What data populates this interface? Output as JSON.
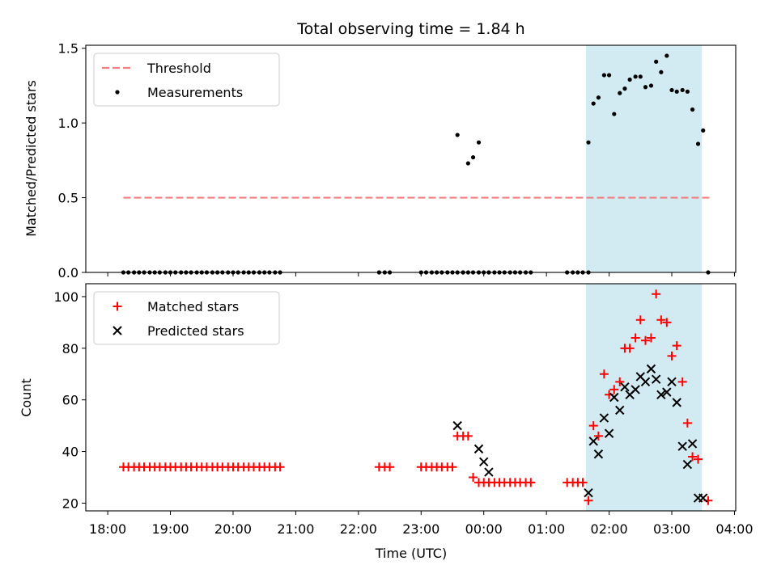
{
  "title": "Total observing time = 1.84 h",
  "colors": {
    "threshold": "#f08080",
    "measurement": "#000000",
    "matched": "#ff0000",
    "predicted": "#000000",
    "shade": "#add8e6"
  },
  "chart_data": [
    {
      "type": "scatter",
      "ylabel": "Matched/Predicted stars",
      "ylim": [
        0,
        1.52
      ],
      "yticks": [
        0,
        0.5,
        1.0,
        1.5
      ],
      "ytick_labels": [
        "0.0",
        "0.5",
        "1.0",
        "1.5"
      ],
      "x_unit": "hours since 18:00 UTC",
      "xlim": [
        -0.35,
        10.02
      ],
      "shaded_span": [
        7.63,
        9.48
      ],
      "legend": {
        "position": "top-left",
        "entries": [
          "Threshold",
          "Measurements"
        ]
      },
      "threshold": {
        "name": "Threshold",
        "x": [
          0.25,
          9.6
        ],
        "y": 0.5
      },
      "series": [
        {
          "name": "Measurements",
          "x": [
            0.25,
            0.33,
            0.42,
            0.5,
            0.58,
            0.67,
            0.75,
            0.83,
            0.92,
            1.0,
            1.08,
            1.17,
            1.25,
            1.33,
            1.42,
            1.5,
            1.58,
            1.67,
            1.75,
            1.83,
            1.92,
            2.0,
            2.08,
            2.17,
            2.25,
            2.33,
            2.42,
            2.5,
            2.58,
            2.67,
            2.75,
            4.33,
            4.42,
            4.5,
            5.0,
            5.08,
            5.17,
            5.25,
            5.33,
            5.42,
            5.5,
            5.58,
            5.67,
            5.75,
            5.83,
            5.92,
            6.0,
            6.08,
            6.17,
            6.25,
            6.33,
            6.42,
            6.5,
            6.58,
            6.67,
            6.75,
            7.33,
            7.42,
            7.5,
            7.58,
            7.67,
            5.58,
            5.67,
            5.75,
            5.83,
            5.92,
            6.08,
            7.67,
            7.75,
            7.83,
            7.92,
            8.0,
            8.08,
            8.17,
            8.25,
            8.33,
            8.42,
            8.5,
            8.58,
            8.67,
            8.75,
            8.83,
            8.92,
            9.0,
            9.08,
            9.17,
            9.25,
            9.33,
            9.42,
            9.5,
            9.58
          ],
          "y": [
            0,
            0,
            0,
            0,
            0,
            0,
            0,
            0,
            0,
            0,
            0,
            0,
            0,
            0,
            0,
            0,
            0,
            0,
            0,
            0,
            0,
            0,
            0,
            0,
            0,
            0,
            0,
            0,
            0,
            0,
            0,
            0,
            0,
            0,
            0,
            0,
            0,
            0,
            0,
            0,
            0,
            0,
            0,
            0,
            0,
            0,
            0,
            0,
            0,
            0,
            0,
            0,
            0,
            0,
            0,
            0,
            0,
            0,
            0,
            0,
            0,
            0.92,
            0,
            0.73,
            0.77,
            0.87,
            0,
            0.87,
            1.13,
            1.17,
            1.32,
            1.32,
            1.06,
            1.2,
            1.23,
            1.29,
            1.31,
            1.31,
            1.24,
            1.25,
            1.41,
            1.34,
            1.45,
            1.22,
            1.21,
            1.22,
            1.21,
            1.09,
            0.86,
            0.95,
            0
          ]
        }
      ]
    },
    {
      "type": "scatter",
      "ylabel": "Count",
      "xlabel": "Time (UTC)",
      "ylim": [
        17,
        105
      ],
      "yticks": [
        20,
        40,
        60,
        80,
        100
      ],
      "ytick_labels": [
        "20",
        "40",
        "60",
        "80",
        "100"
      ],
      "x_unit": "hours since 18:00 UTC",
      "xlim": [
        -0.35,
        10.02
      ],
      "xticks": [
        0,
        1,
        2,
        3,
        4,
        5,
        6,
        7,
        8,
        9,
        10
      ],
      "xtick_labels": [
        "18:00",
        "19:00",
        "20:00",
        "21:00",
        "22:00",
        "23:00",
        "00:00",
        "01:00",
        "02:00",
        "03:00",
        "04:00"
      ],
      "shaded_span": [
        7.63,
        9.48
      ],
      "legend": {
        "position": "top-left",
        "entries": [
          "Matched stars",
          "Predicted stars"
        ]
      },
      "series": [
        {
          "name": "Matched stars",
          "marker": "+",
          "x": [
            0.25,
            0.33,
            0.42,
            0.5,
            0.58,
            0.67,
            0.75,
            0.83,
            0.92,
            1.0,
            1.08,
            1.17,
            1.25,
            1.33,
            1.42,
            1.5,
            1.58,
            1.67,
            1.75,
            1.83,
            1.92,
            2.0,
            2.08,
            2.17,
            2.25,
            2.33,
            2.42,
            2.5,
            2.58,
            2.67,
            2.75,
            4.33,
            4.42,
            4.5,
            5.0,
            5.08,
            5.17,
            5.25,
            5.33,
            5.42,
            5.5,
            5.58,
            5.67,
            5.75,
            5.83,
            5.92,
            6.0,
            6.08,
            6.17,
            6.25,
            6.33,
            6.42,
            6.5,
            6.58,
            6.67,
            6.75,
            7.33,
            7.42,
            7.5,
            7.58,
            7.67,
            7.75,
            7.83,
            7.92,
            8.0,
            8.08,
            8.17,
            8.25,
            8.33,
            8.42,
            8.5,
            8.58,
            8.67,
            8.75,
            8.83,
            8.92,
            9.0,
            9.08,
            9.17,
            9.25,
            9.33,
            9.42,
            9.58
          ],
          "y": [
            34,
            34,
            34,
            34,
            34,
            34,
            34,
            34,
            34,
            34,
            34,
            34,
            34,
            34,
            34,
            34,
            34,
            34,
            34,
            34,
            34,
            34,
            34,
            34,
            34,
            34,
            34,
            34,
            34,
            34,
            34,
            34,
            34,
            34,
            34,
            34,
            34,
            34,
            34,
            34,
            34,
            46,
            46,
            46,
            30,
            28,
            28,
            28,
            28,
            28,
            28,
            28,
            28,
            28,
            28,
            28,
            28,
            28,
            28,
            28,
            21,
            50,
            46,
            70,
            62,
            64,
            67,
            80,
            80,
            84,
            91,
            83,
            84,
            101,
            91,
            90,
            77,
            81,
            67,
            51,
            38,
            37,
            21
          ]
        },
        {
          "name": "Predicted stars",
          "marker": "x",
          "x": [
            5.58,
            5.92,
            6.0,
            6.08,
            7.67,
            7.75,
            7.83,
            7.92,
            8.0,
            8.08,
            8.17,
            8.25,
            8.33,
            8.42,
            8.5,
            8.58,
            8.67,
            8.75,
            8.83,
            8.92,
            9.0,
            9.08,
            9.17,
            9.25,
            9.33,
            9.42,
            9.5
          ],
          "y": [
            50,
            41,
            36,
            32,
            24,
            44,
            39,
            53,
            47,
            61,
            56,
            65,
            62,
            64,
            69,
            67,
            72,
            68,
            62,
            63,
            67,
            59,
            42,
            35,
            43,
            22,
            22
          ]
        }
      ]
    }
  ]
}
